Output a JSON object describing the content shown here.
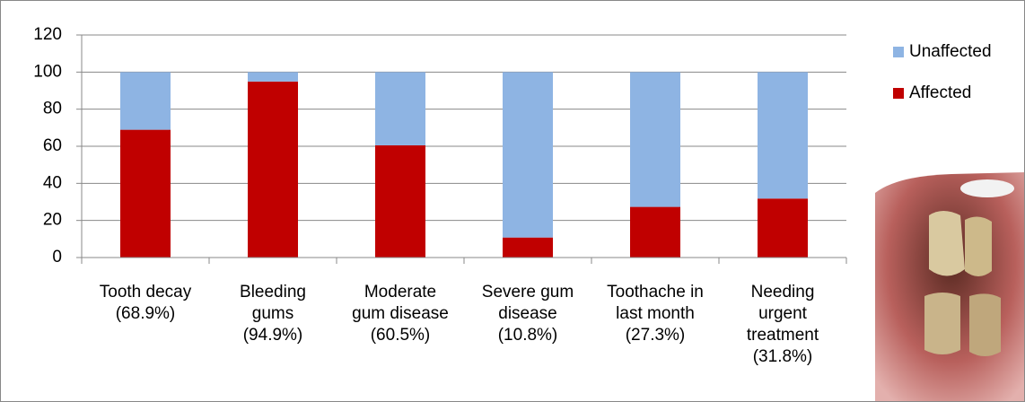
{
  "chart_data": {
    "type": "stacked-bar",
    "categories": [
      [
        "Tooth decay",
        "(68.9%)"
      ],
      [
        "Bleeding",
        "gums",
        "(94.9%)"
      ],
      [
        "Moderate",
        "gum disease",
        "(60.5%)"
      ],
      [
        "Severe gum",
        "disease",
        "(10.8%)"
      ],
      [
        "Toothache in",
        "last month",
        "(27.3%)"
      ],
      [
        "Needing",
        "urgent",
        "treatment",
        "(31.8%)"
      ]
    ],
    "series": [
      {
        "name": "Unaffected",
        "color": "#8eb4e3",
        "values": [
          31.1,
          5.1,
          39.5,
          89.2,
          72.7,
          68.2
        ]
      },
      {
        "name": "Affected",
        "color": "#c00000",
        "values": [
          68.9,
          94.9,
          60.5,
          10.8,
          27.3,
          31.8
        ]
      }
    ],
    "ylim": [
      0,
      120
    ],
    "yticks": [
      0,
      20,
      40,
      60,
      80,
      100,
      120
    ],
    "grid": true,
    "legend": "right"
  }
}
